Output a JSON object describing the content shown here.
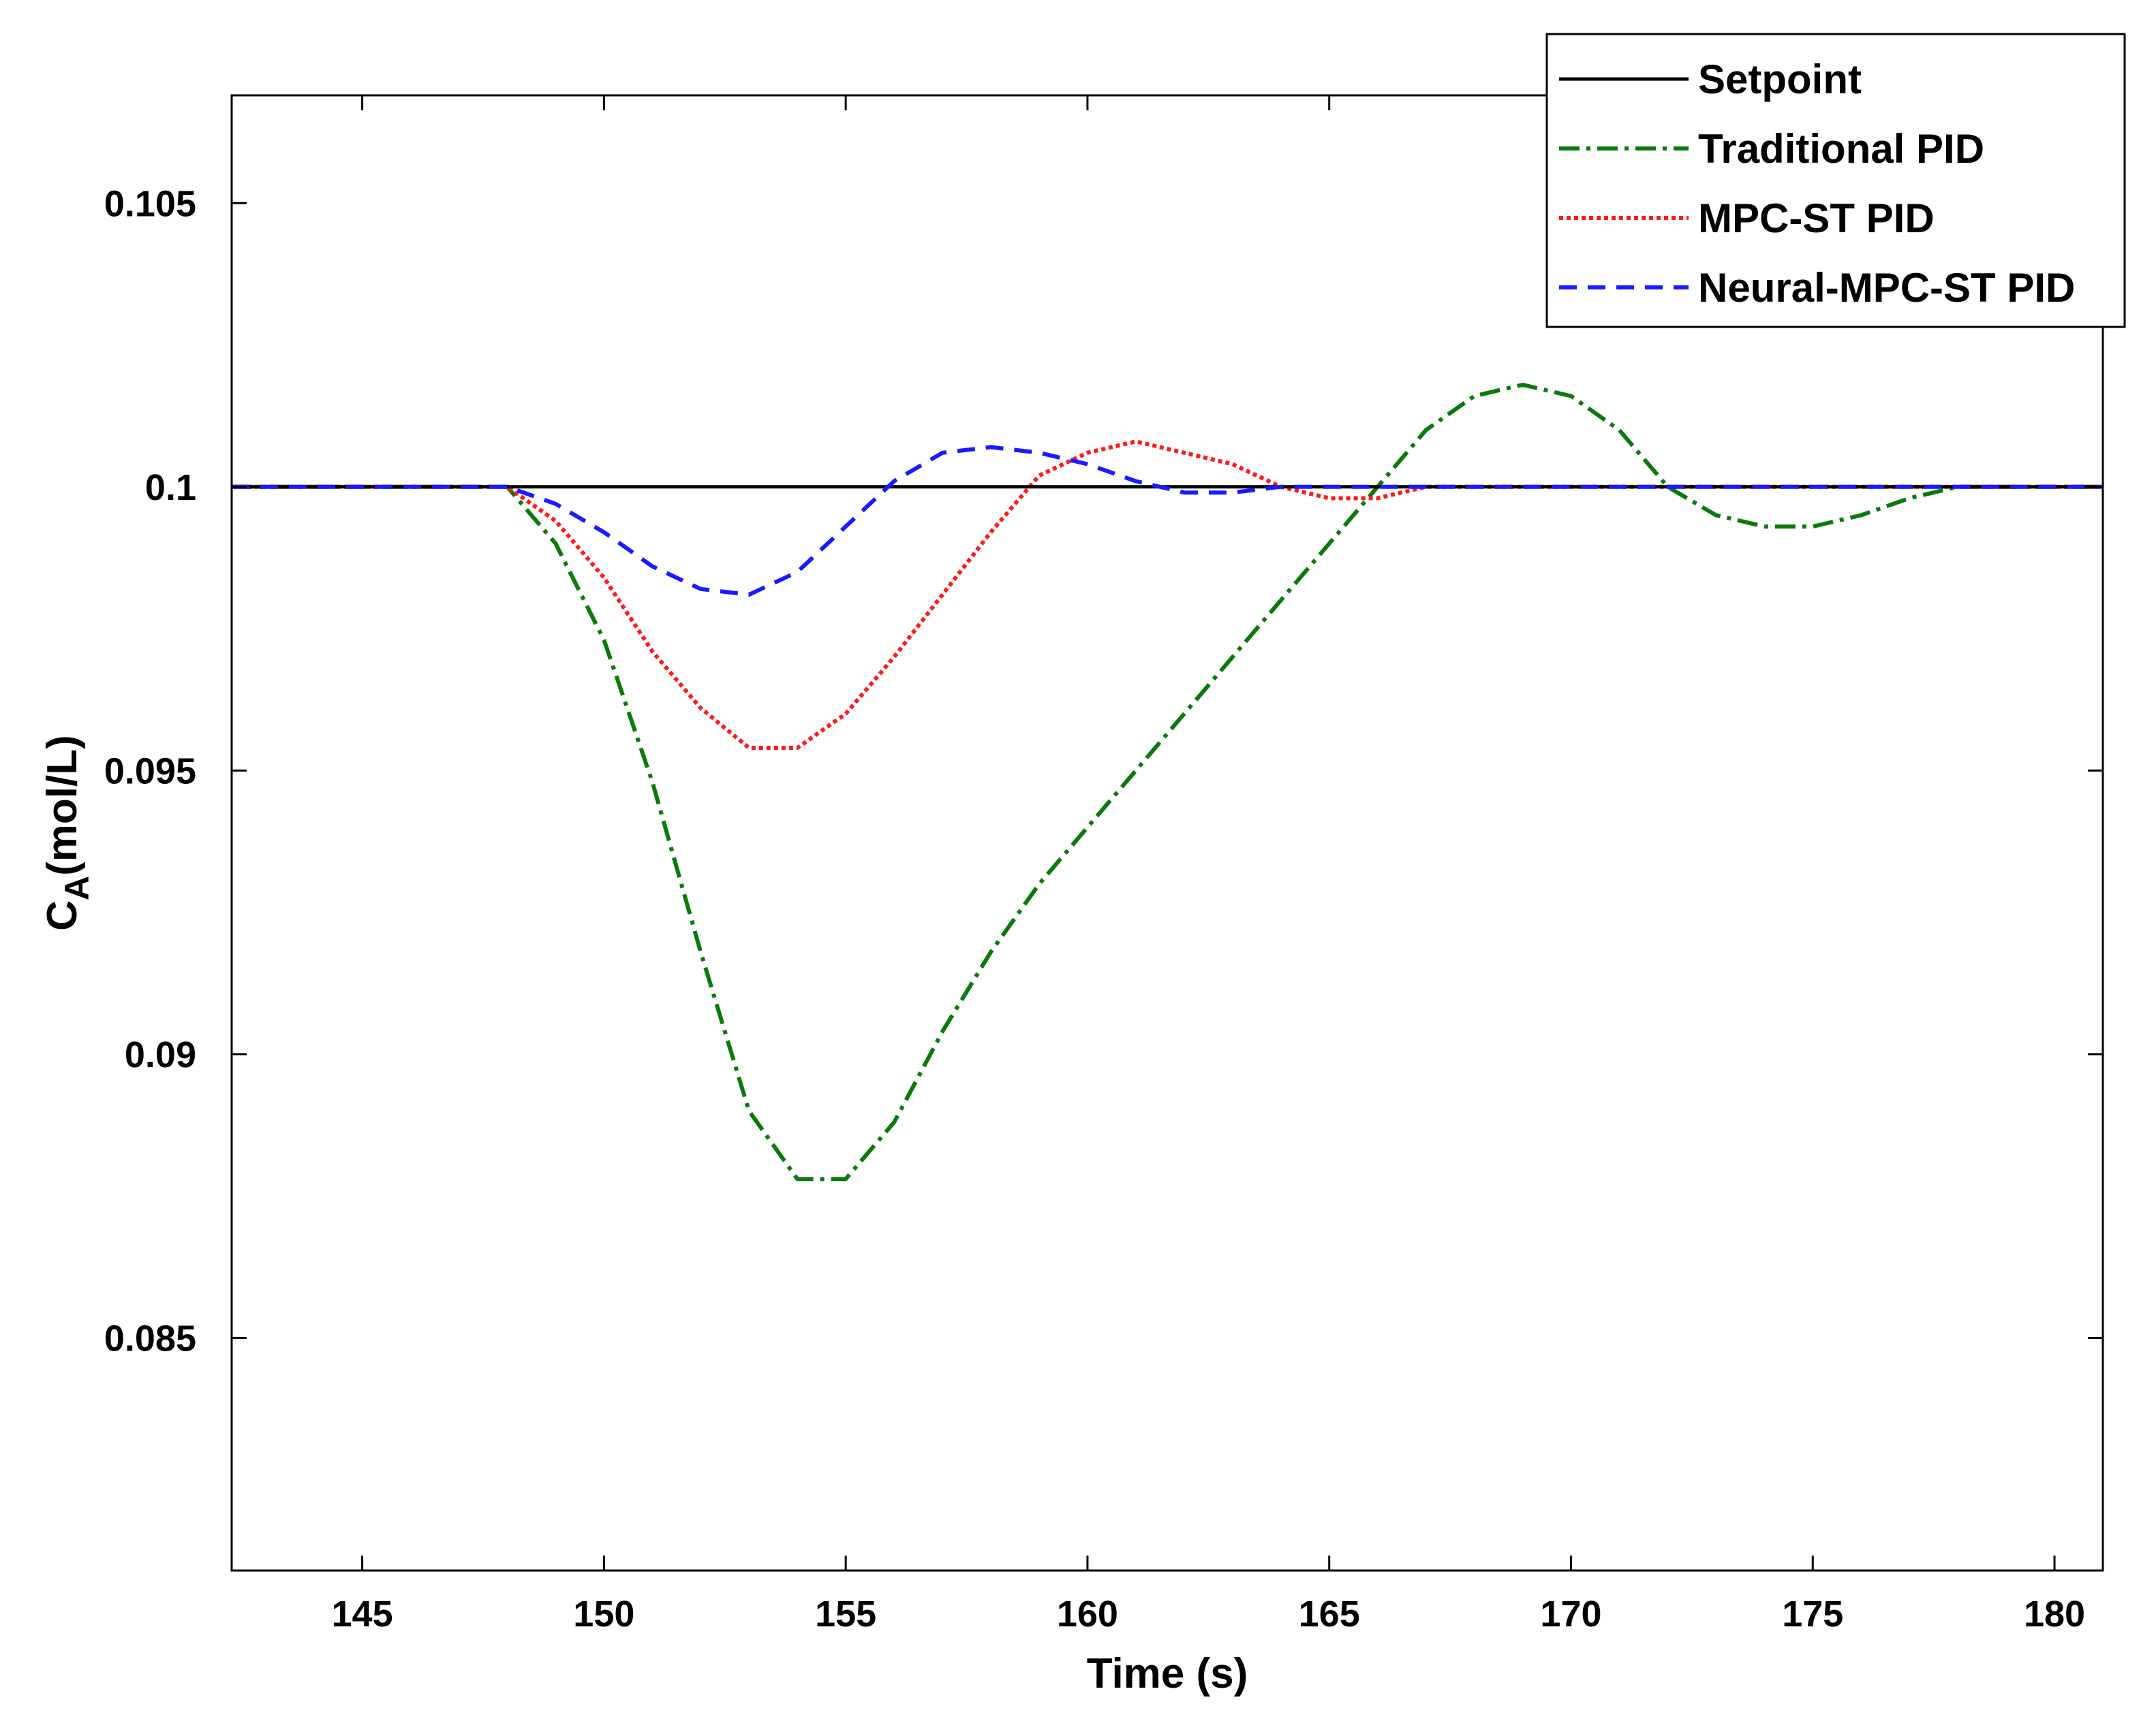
{
  "chart_data": {
    "type": "line",
    "title": "",
    "xlabel": "Time (s)",
    "ylabel_main": "C",
    "ylabel_sub": "A",
    "ylabel_unit": "(mol/L)",
    "xlim": [
      142.3,
      181
    ],
    "ylim": [
      0.0809,
      0.1069
    ],
    "xticks": [
      145,
      150,
      155,
      160,
      165,
      170,
      175,
      180
    ],
    "xtick_labels": [
      "145",
      "150",
      "155",
      "160",
      "165",
      "170",
      "175",
      "180"
    ],
    "yticks": [
      0.085,
      0.09,
      0.095,
      0.1,
      0.105
    ],
    "ytick_labels": [
      "0.085",
      "0.09",
      "0.095",
      "0.1",
      "0.105"
    ],
    "grid": false,
    "legend_position": "top-right",
    "series": [
      {
        "name": "Setpoint",
        "color": "#000000",
        "style": "solid",
        "points": [
          [
            142.3,
            0.1
          ],
          [
            181,
            0.1
          ]
        ]
      },
      {
        "name": "Traditional PID",
        "color": "#0a7a0a",
        "style": "dashdot",
        "points": [
          [
            142.3,
            0.1
          ],
          [
            148,
            0.1
          ],
          [
            149,
            0.099
          ],
          [
            150,
            0.0973
          ],
          [
            151,
            0.0948
          ],
          [
            152,
            0.0918
          ],
          [
            153,
            0.089
          ],
          [
            154,
            0.0878
          ],
          [
            155,
            0.0878
          ],
          [
            156,
            0.0888
          ],
          [
            157,
            0.0904
          ],
          [
            158,
            0.0918
          ],
          [
            159,
            0.093
          ],
          [
            160,
            0.094
          ],
          [
            161,
            0.095
          ],
          [
            162,
            0.096
          ],
          [
            163,
            0.097
          ],
          [
            164,
            0.098
          ],
          [
            165,
            0.099
          ],
          [
            166,
            0.1
          ],
          [
            167,
            0.101
          ],
          [
            168,
            0.1016
          ],
          [
            169,
            0.1018
          ],
          [
            170,
            0.1016
          ],
          [
            171,
            0.101
          ],
          [
            172,
            0.1
          ],
          [
            173,
            0.0995
          ],
          [
            174,
            0.0993
          ],
          [
            175,
            0.0993
          ],
          [
            176,
            0.0995
          ],
          [
            177,
            0.0998
          ],
          [
            178,
            0.1
          ],
          [
            181,
            0.1
          ]
        ]
      },
      {
        "name": "MPC-ST PID",
        "color": "#ff1a1a",
        "style": "dotted",
        "points": [
          [
            142.3,
            0.1
          ],
          [
            148,
            0.1
          ],
          [
            149,
            0.0994
          ],
          [
            150,
            0.0984
          ],
          [
            151,
            0.0971
          ],
          [
            152,
            0.0961
          ],
          [
            153,
            0.0954
          ],
          [
            154,
            0.0954
          ],
          [
            155,
            0.096
          ],
          [
            156,
            0.097
          ],
          [
            157,
            0.0981
          ],
          [
            158,
            0.0992
          ],
          [
            159,
            0.1002
          ],
          [
            160,
            0.1006
          ],
          [
            161,
            0.1008
          ],
          [
            162,
            0.1006
          ],
          [
            163,
            0.1004
          ],
          [
            164,
            0.1
          ],
          [
            165,
            0.0998
          ],
          [
            166,
            0.0998
          ],
          [
            167,
            0.1
          ],
          [
            181,
            0.1
          ]
        ]
      },
      {
        "name": "Neural-MPC-ST PID",
        "color": "#1a1aff",
        "style": "dashed",
        "points": [
          [
            142.3,
            0.1
          ],
          [
            148,
            0.1
          ],
          [
            149,
            0.0997
          ],
          [
            150,
            0.0992
          ],
          [
            151,
            0.0986
          ],
          [
            152,
            0.0982
          ],
          [
            153,
            0.0981
          ],
          [
            154,
            0.0985
          ],
          [
            155,
            0.0993
          ],
          [
            156,
            0.1001
          ],
          [
            157,
            0.1006
          ],
          [
            158,
            0.1007
          ],
          [
            159,
            0.1006
          ],
          [
            160,
            0.1004
          ],
          [
            161,
            0.1001
          ],
          [
            162,
            0.0999
          ],
          [
            163,
            0.0999
          ],
          [
            164,
            0.1
          ],
          [
            181,
            0.1
          ]
        ]
      }
    ]
  }
}
